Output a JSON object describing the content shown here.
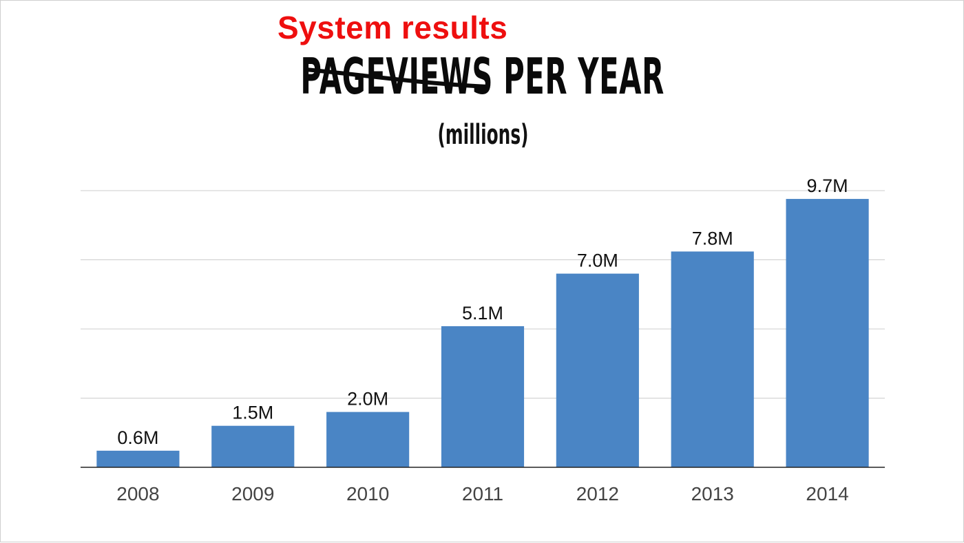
{
  "annotation": "System results",
  "title": {
    "struck_word": "PAGEVIEWS",
    "rest": "PER YEAR",
    "subtitle": "(millions)"
  },
  "colors": {
    "bar": "#4a85c5",
    "annotation": "#ee0f0f",
    "grid": "#cccccc",
    "axis": "#222222"
  },
  "chart_data": {
    "type": "bar",
    "title": "PAGEVIEWS PER YEAR",
    "subtitle": "(millions)",
    "categories": [
      "2008",
      "2009",
      "2010",
      "2011",
      "2012",
      "2013",
      "2014"
    ],
    "values": [
      0.6,
      1.5,
      2.0,
      5.1,
      7.0,
      7.8,
      9.7
    ],
    "data_labels": [
      "0.6M",
      "1.5M",
      "2.0M",
      "5.1M",
      "7.0M",
      "7.8M",
      "9.7M"
    ],
    "ylim": [
      0,
      10
    ],
    "grid": true,
    "xlabel": "",
    "ylabel": ""
  }
}
